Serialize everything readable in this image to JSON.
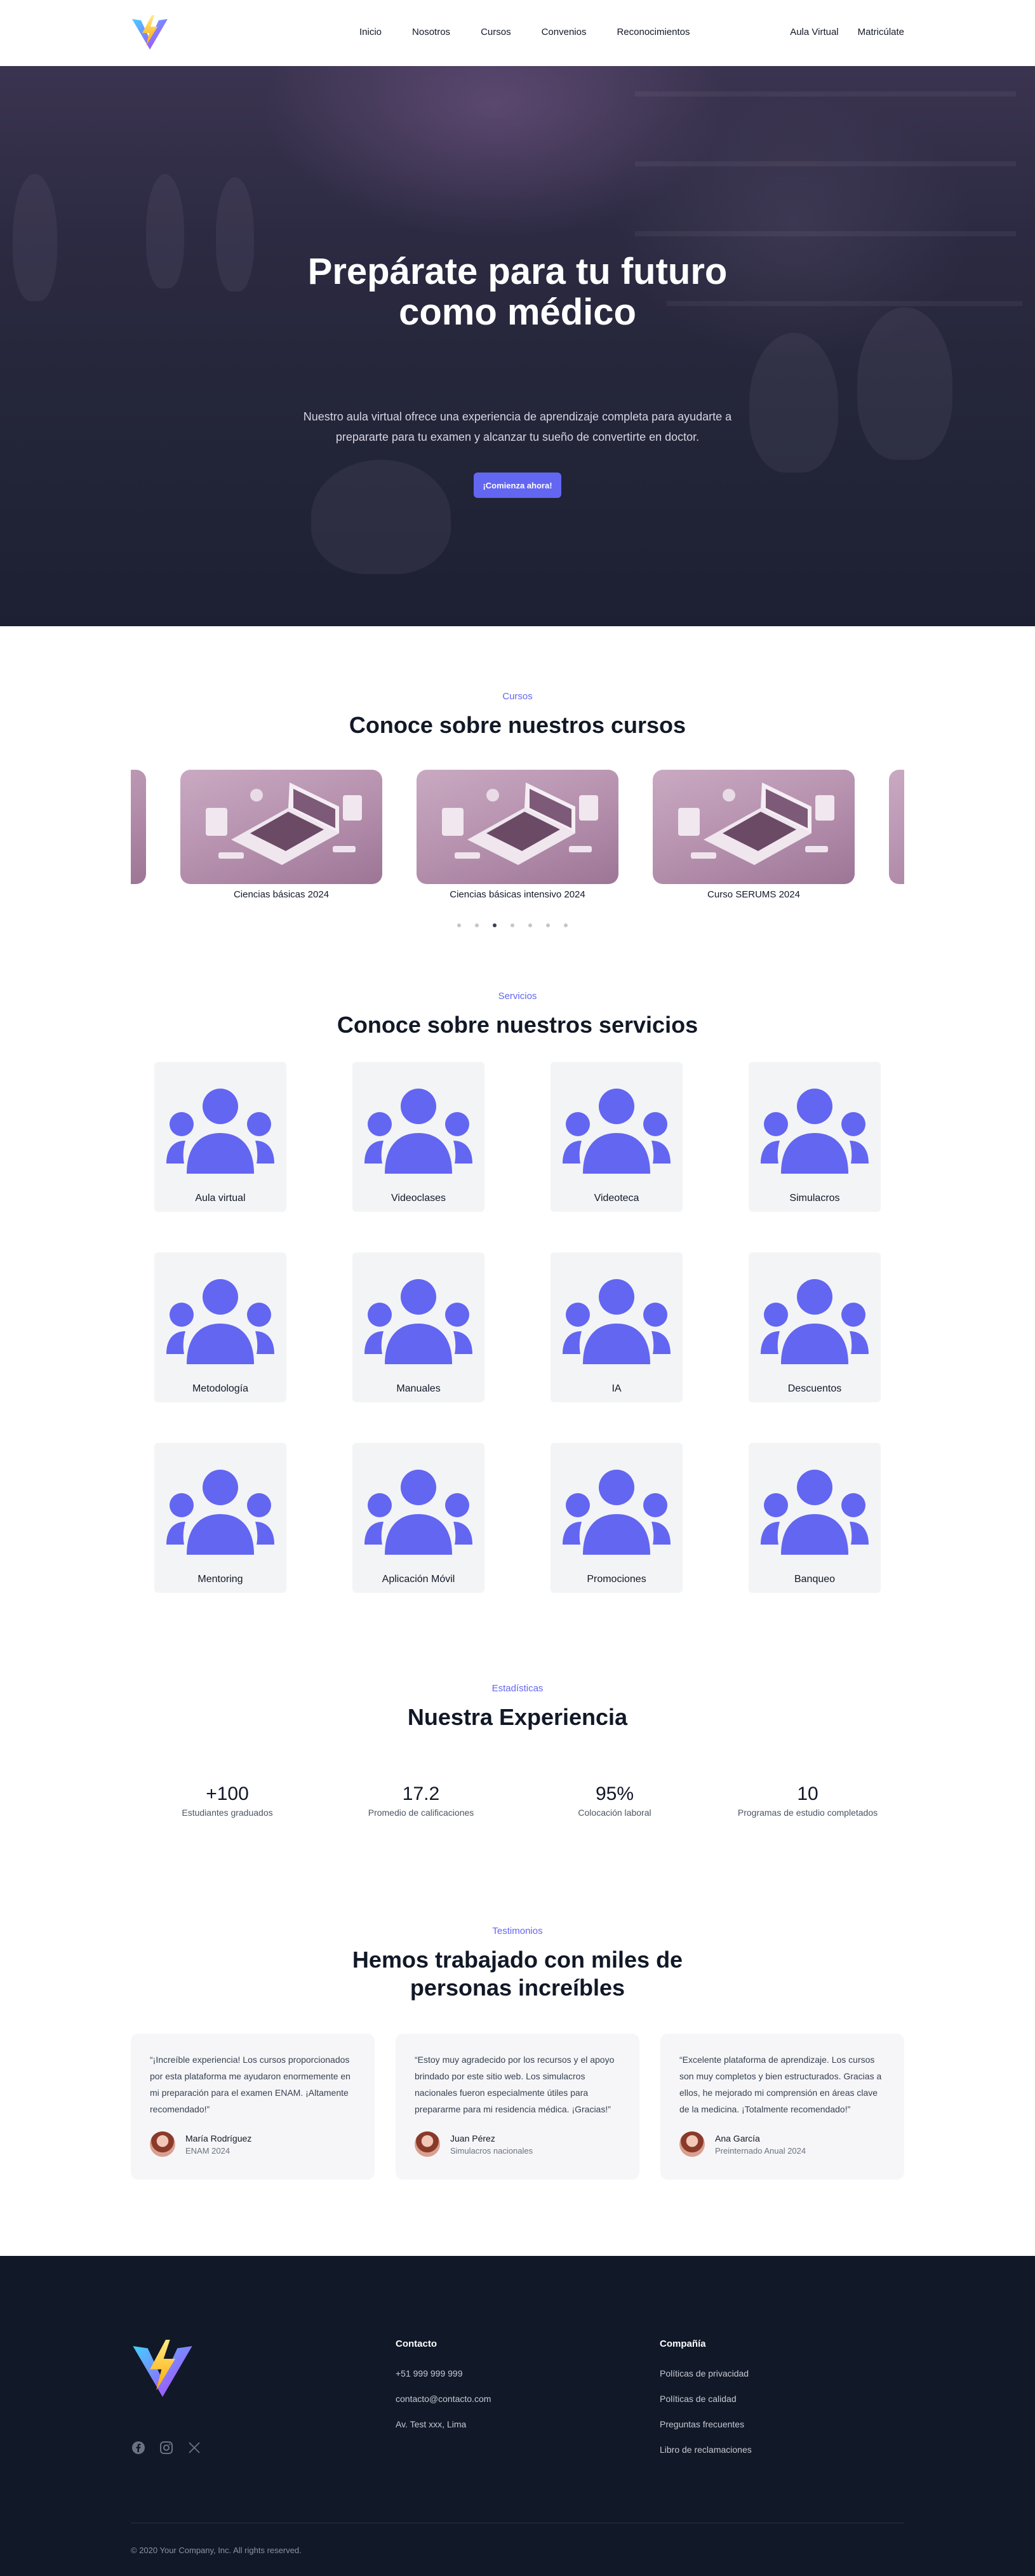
{
  "nav": {
    "links": [
      "Inicio",
      "Nosotros",
      "Cursos",
      "Convenios",
      "Reconocimientos"
    ],
    "aula_virtual": "Aula Virtual",
    "matriculate": "Matricúlate"
  },
  "hero": {
    "title_line1": "Prepárate para tu futuro",
    "title_line2": "como médico",
    "subtitle": "Nuestro aula virtual ofrece una experiencia de aprendizaje completa para ayudarte a prepararte para tu examen y alcanzar tu sueño de convertirte en doctor.",
    "cta": "¡Comienza ahora!"
  },
  "courses": {
    "eyebrow": "Cursos",
    "title": "Conoce sobre nuestros cursos",
    "items": [
      "Ciencias básicas 2024",
      "Ciencias básicas intensivo 2024",
      "Curso SERUMS 2024"
    ],
    "active_dot": 2,
    "dot_count": 7
  },
  "services": {
    "eyebrow": "Servicios",
    "title": "Conoce sobre nuestros servicios",
    "items": [
      "Aula virtual",
      "Videoclases",
      "Videoteca",
      "Simulacros",
      "Metodología",
      "Manuales",
      "IA",
      "Descuentos",
      "Mentoring",
      "Aplicación Móvil",
      "Promociones",
      "Banqueo"
    ]
  },
  "stats": {
    "eyebrow": "Estadísticas",
    "title": "Nuestra Experiencia",
    "items": [
      {
        "value": "+100",
        "label": "Estudiantes graduados"
      },
      {
        "value": "17.2",
        "label": "Promedio de calificaciones"
      },
      {
        "value": "95%",
        "label": "Colocación laboral"
      },
      {
        "value": "10",
        "label": "Programas de estudio completados"
      }
    ]
  },
  "testimonials": {
    "eyebrow": "Testimonios",
    "title_line1": "Hemos trabajado con miles de",
    "title_line2": "personas increíbles",
    "items": [
      {
        "quote": "“¡Increíble experiencia! Los cursos proporcionados por esta plataforma me ayudaron enormemente en mi preparación para el examen ENAM. ¡Altamente recomendado!”",
        "name": "María Rodríguez",
        "role": "ENAM 2024"
      },
      {
        "quote": "“Estoy muy agradecido por los recursos y el apoyo brindado por este sitio web. Los simulacros nacionales fueron especialmente útiles para prepararme para mi residencia médica. ¡Gracias!”",
        "name": "Juan Pérez",
        "role": "Simulacros nacionales"
      },
      {
        "quote": "“Excelente plataforma de aprendizaje. Los cursos son muy completos y bien estructurados. Gracias a ellos, he mejorado mi comprensión en áreas clave de la medicina. ¡Totalmente recomendado!”",
        "name": "Ana García",
        "role": "Preinternado Anual 2024"
      }
    ]
  },
  "footer": {
    "contact_title": "Contacto",
    "contact": [
      "+51 999 999 999",
      "contacto@contacto.com",
      "Av. Test xxx, Lima"
    ],
    "company_title": "Compañía",
    "company": [
      "Políticas de privacidad",
      "Políticas de calidad",
      "Preguntas frecuentes",
      "Libro de reclamaciones"
    ],
    "copyright": "© 2020 Your Company, Inc. All rights reserved."
  },
  "colors": {
    "accent": "#6366f1",
    "footer_bg": "#111827"
  }
}
